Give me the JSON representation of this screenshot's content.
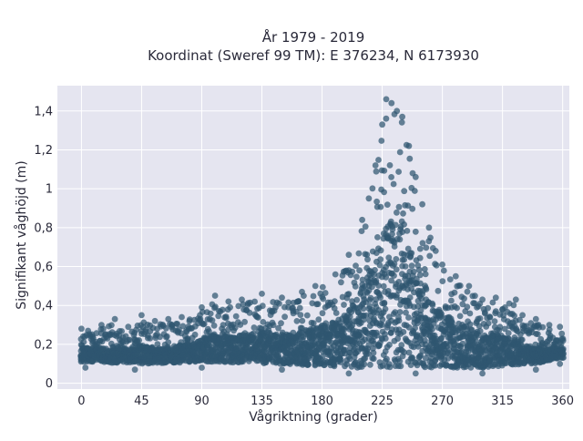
{
  "chart_data": {
    "type": "scatter",
    "title_line1": "År 1979 - 2019",
    "title_line2": "Koordinat (Sweref 99 TM): E 376234, N 6173930",
    "xlabel": "Vågriktning (grader)",
    "ylabel": "Signifikant våghöjd (m)",
    "xlim": [
      -18,
      365
    ],
    "ylim": [
      -0.03,
      1.53
    ],
    "xticks": [
      0,
      45,
      90,
      135,
      180,
      225,
      270,
      315,
      360
    ],
    "xtick_labels": [
      "0",
      "45",
      "90",
      "135",
      "180",
      "225",
      "270",
      "315",
      "360"
    ],
    "yticks": [
      0,
      0.2,
      0.4,
      0.6,
      0.8,
      1.0,
      1.2,
      1.4
    ],
    "ytick_labels": [
      "0",
      "0,2",
      "0,4",
      "0,6",
      "0,8",
      "1",
      "1,2",
      "1,4"
    ],
    "grid": true,
    "marker_color": "#2f5670",
    "plot_background": "#e5e5f0",
    "points": [
      [
        0,
        0.28
      ],
      [
        5,
        0.27
      ],
      [
        15,
        0.3
      ],
      [
        25,
        0.33
      ],
      [
        35,
        0.29
      ],
      [
        45,
        0.35
      ],
      [
        55,
        0.32
      ],
      [
        65,
        0.33
      ],
      [
        75,
        0.34
      ],
      [
        90,
        0.39
      ],
      [
        100,
        0.45
      ],
      [
        110,
        0.42
      ],
      [
        120,
        0.43
      ],
      [
        135,
        0.46
      ],
      [
        150,
        0.44
      ],
      [
        165,
        0.47
      ],
      [
        175,
        0.5
      ],
      [
        190,
        0.56
      ],
      [
        200,
        0.66
      ],
      [
        210,
        0.84
      ],
      [
        215,
        0.95
      ],
      [
        220,
        1.12
      ],
      [
        225,
        1.33
      ],
      [
        228,
        1.46
      ],
      [
        232,
        1.44
      ],
      [
        236,
        1.4
      ],
      [
        240,
        1.37
      ],
      [
        245,
        1.22
      ],
      [
        250,
        1.06
      ],
      [
        255,
        0.92
      ],
      [
        260,
        0.8
      ],
      [
        265,
        0.68
      ],
      [
        270,
        0.61
      ],
      [
        280,
        0.55
      ],
      [
        290,
        0.5
      ],
      [
        300,
        0.43
      ],
      [
        310,
        0.44
      ],
      [
        320,
        0.41
      ],
      [
        325,
        0.43
      ],
      [
        330,
        0.35
      ],
      [
        340,
        0.33
      ],
      [
        350,
        0.3
      ],
      [
        358,
        0.29
      ],
      [
        3,
        0.08
      ],
      [
        40,
        0.07
      ],
      [
        90,
        0.08
      ],
      [
        150,
        0.07
      ],
      [
        200,
        0.05
      ],
      [
        250,
        0.05
      ],
      [
        300,
        0.05
      ],
      [
        340,
        0.07
      ],
      [
        358,
        0.1
      ]
    ]
  }
}
